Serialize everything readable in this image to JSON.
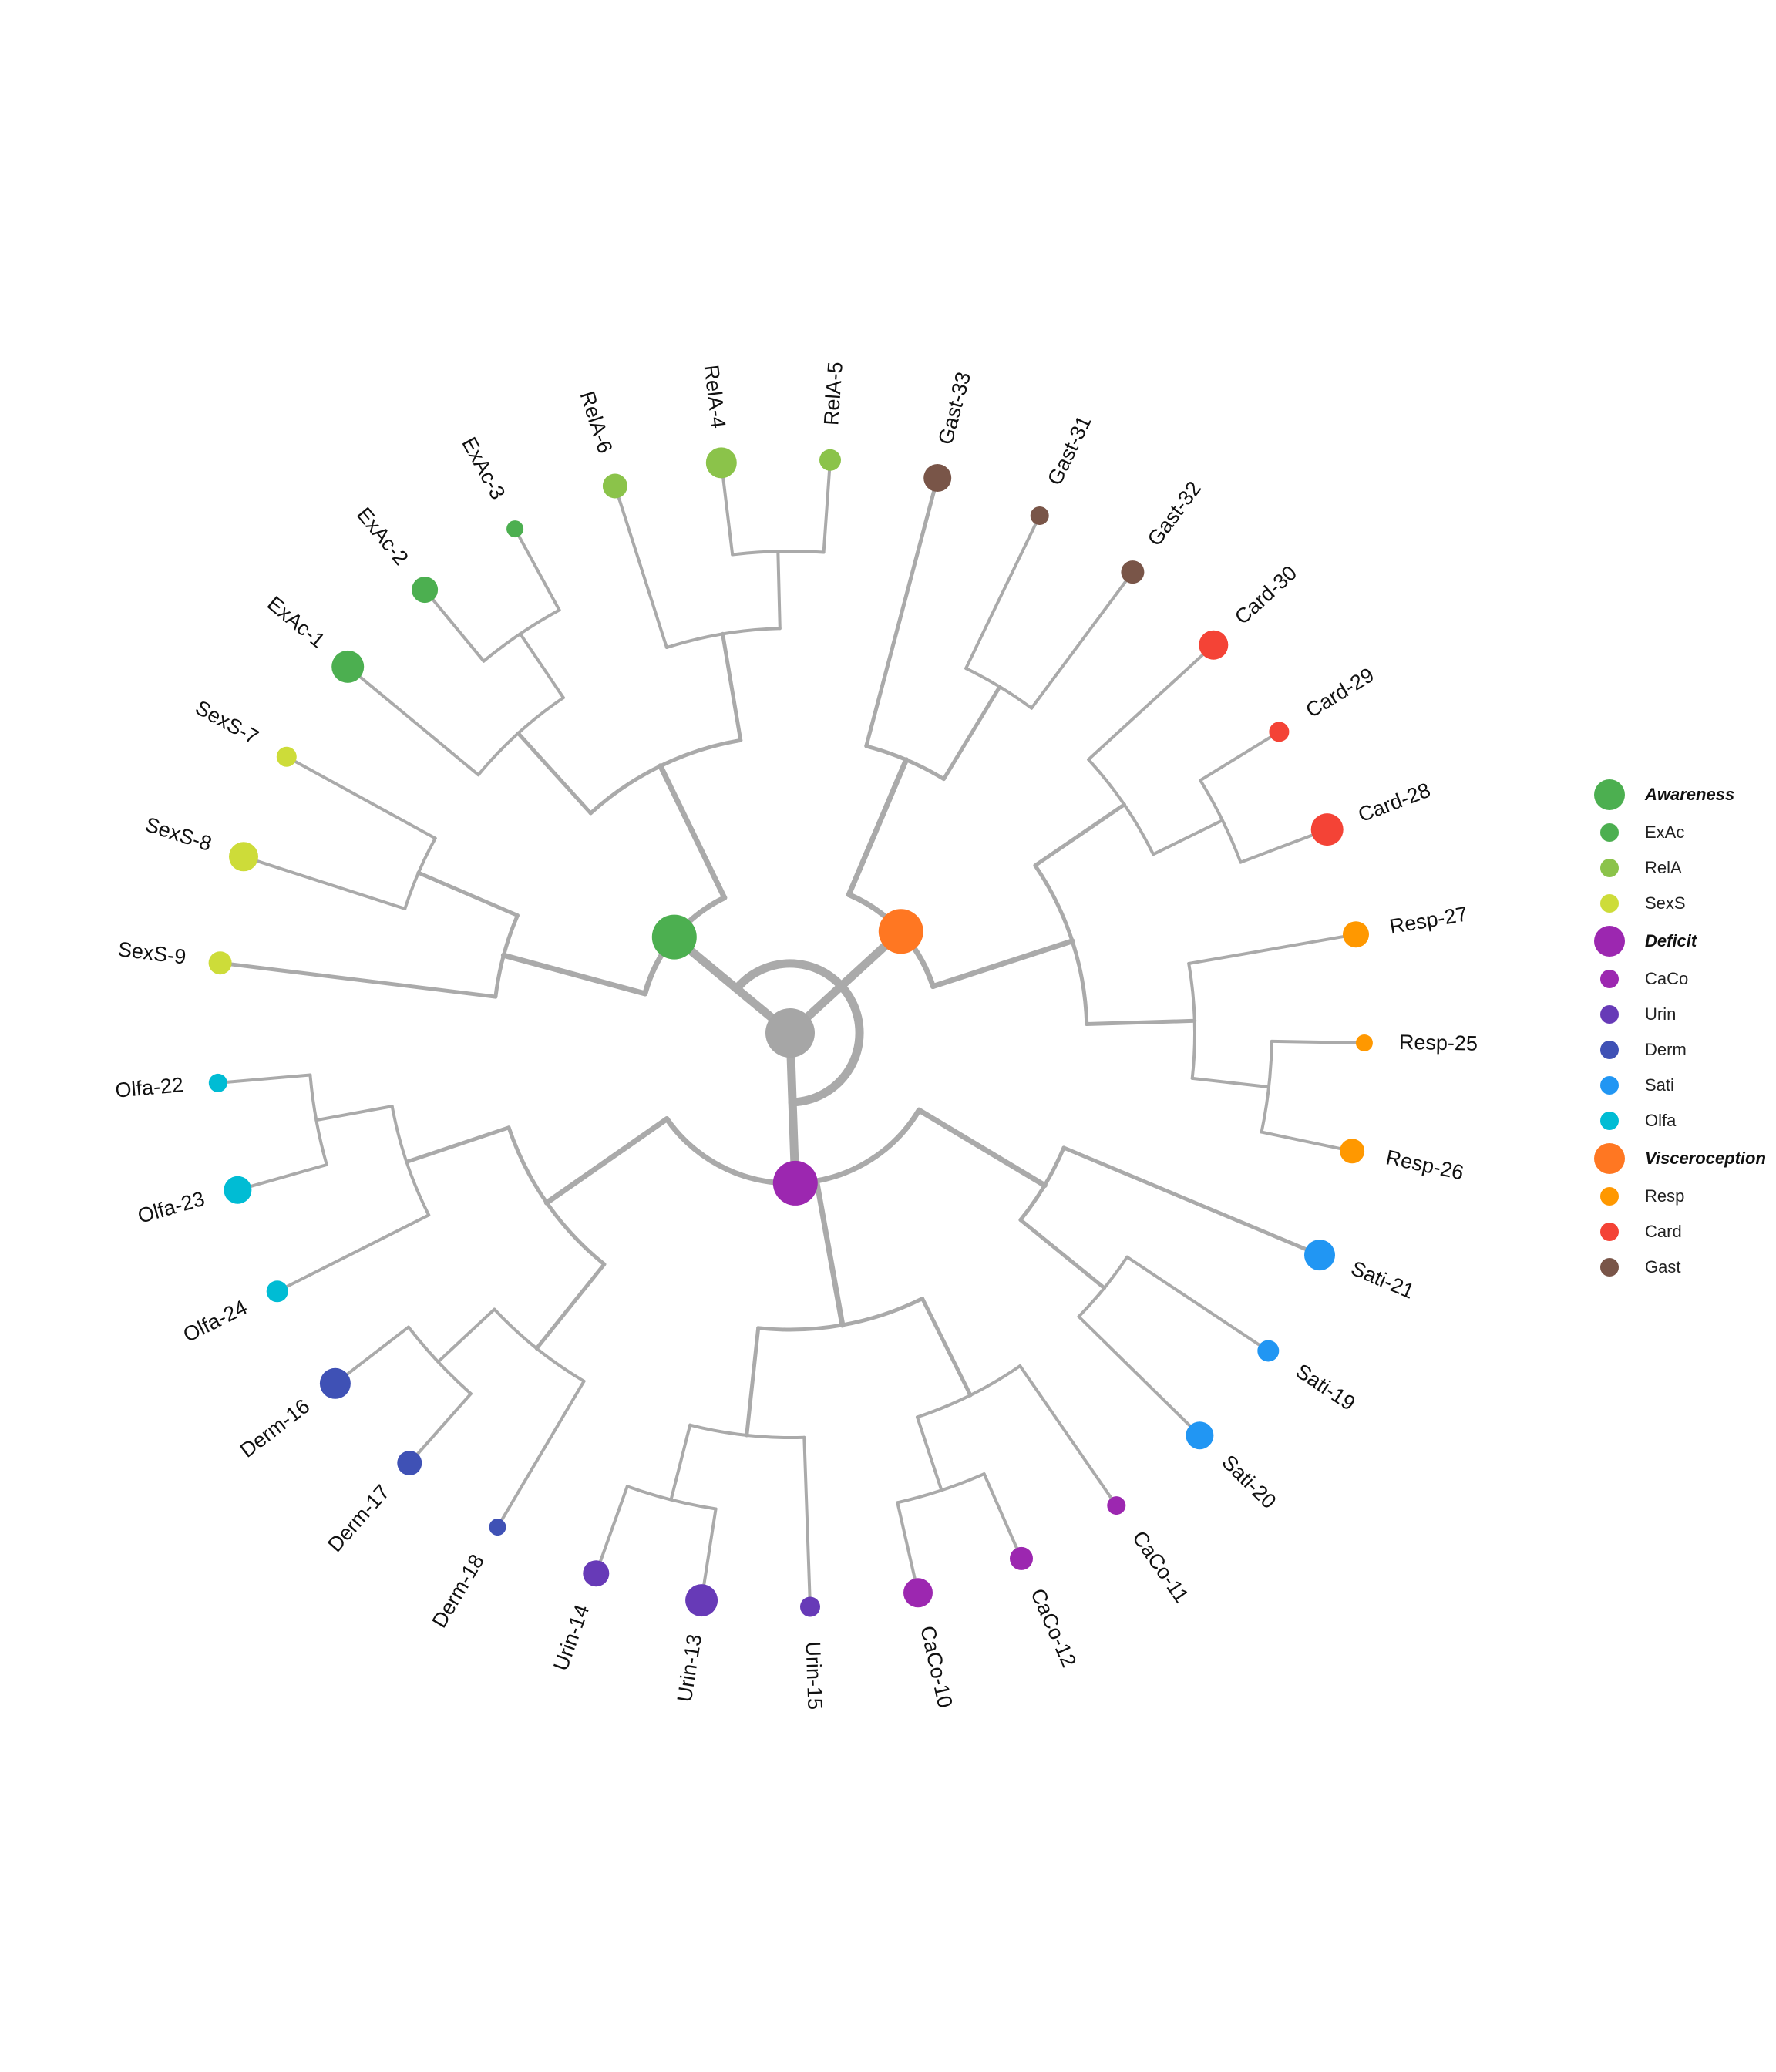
{
  "colors": {
    "branch": "#aaaaaa",
    "root": "#a6a6a6",
    "Awareness": "#4caf50",
    "Deficit": "#9c27b0",
    "Visceroception": "#ff7722",
    "ExAc": "#4caf50",
    "RelA": "#8bc34a",
    "SexS": "#cddc39",
    "CaCo": "#9c27b0",
    "Urin": "#673ab7",
    "Derm": "#3f51b5",
    "Sati": "#2196f3",
    "Olfa": "#00bcd4",
    "Resp": "#ff9800",
    "Card": "#f44336",
    "Gast": "#795548"
  },
  "legend": [
    {
      "label": "Awareness",
      "group": true,
      "color_key": "Awareness"
    },
    {
      "label": "ExAc",
      "group": false,
      "color_key": "ExAc"
    },
    {
      "label": "RelA",
      "group": false,
      "color_key": "RelA"
    },
    {
      "label": "SexS",
      "group": false,
      "color_key": "SexS"
    },
    {
      "label": "Deficit",
      "group": true,
      "color_key": "Deficit"
    },
    {
      "label": "CaCo",
      "group": false,
      "color_key": "CaCo"
    },
    {
      "label": "Urin",
      "group": false,
      "color_key": "Urin"
    },
    {
      "label": "Derm",
      "group": false,
      "color_key": "Derm"
    },
    {
      "label": "Sati",
      "group": false,
      "color_key": "Sati"
    },
    {
      "label": "Olfa",
      "group": false,
      "color_key": "Olfa"
    },
    {
      "label": "Visceroception",
      "group": true,
      "color_key": "Visceroception"
    },
    {
      "label": "Resp",
      "group": false,
      "color_key": "Resp"
    },
    {
      "label": "Card",
      "group": false,
      "color_key": "Card"
    },
    {
      "label": "Gast",
      "group": false,
      "color_key": "Gast"
    }
  ],
  "tree": {
    "name": "root",
    "children": [
      {
        "name": "Awareness",
        "children": [
          {
            "children": [
              {
                "leaf": "SexS-9"
              },
              {
                "children": [
                  {
                    "leaf": "SexS-8"
                  },
                  {
                    "leaf": "SexS-7"
                  }
                ]
              }
            ]
          },
          {
            "children": [
              {
                "children": [
                  {
                    "leaf": "ExAc-1"
                  },
                  {
                    "children": [
                      {
                        "leaf": "ExAc-2"
                      },
                      {
                        "leaf": "ExAc-3"
                      }
                    ]
                  }
                ]
              },
              {
                "children": [
                  {
                    "leaf": "RelA-6"
                  },
                  {
                    "children": [
                      {
                        "leaf": "RelA-4"
                      },
                      {
                        "leaf": "RelA-5"
                      }
                    ]
                  }
                ]
              }
            ]
          }
        ]
      },
      {
        "name": "Visceroception",
        "children": [
          {
            "children": [
              {
                "leaf": "Gast-33"
              },
              {
                "children": [
                  {
                    "leaf": "Gast-31"
                  },
                  {
                    "leaf": "Gast-32"
                  }
                ]
              }
            ]
          },
          {
            "children": [
              {
                "children": [
                  {
                    "leaf": "Card-30"
                  },
                  {
                    "children": [
                      {
                        "leaf": "Card-29"
                      },
                      {
                        "leaf": "Card-28"
                      }
                    ]
                  }
                ]
              },
              {
                "children": [
                  {
                    "leaf": "Resp-27"
                  },
                  {
                    "children": [
                      {
                        "leaf": "Resp-25"
                      },
                      {
                        "leaf": "Resp-26"
                      }
                    ]
                  }
                ]
              }
            ]
          }
        ]
      },
      {
        "name": "Deficit",
        "children": [
          {
            "children": [
              {
                "leaf": "Sati-21"
              },
              {
                "children": [
                  {
                    "leaf": "Sati-19"
                  },
                  {
                    "leaf": "Sati-20"
                  }
                ]
              }
            ]
          },
          {
            "children": [
              {
                "children": [
                  {
                    "leaf": "CaCo-11"
                  },
                  {
                    "children": [
                      {
                        "leaf": "CaCo-12"
                      },
                      {
                        "leaf": "CaCo-10"
                      }
                    ]
                  }
                ]
              },
              {
                "children": [
                  {
                    "leaf": "Urin-15"
                  },
                  {
                    "children": [
                      {
                        "leaf": "Urin-13"
                      },
                      {
                        "leaf": "Urin-14"
                      }
                    ]
                  }
                ]
              }
            ]
          },
          {
            "children": [
              {
                "children": [
                  {
                    "leaf": "Derm-18"
                  },
                  {
                    "children": [
                      {
                        "leaf": "Derm-17"
                      },
                      {
                        "leaf": "Derm-16"
                      }
                    ]
                  }
                ]
              },
              {
                "children": [
                  {
                    "leaf": "Olfa-24"
                  },
                  {
                    "children": [
                      {
                        "leaf": "Olfa-23"
                      },
                      {
                        "leaf": "Olfa-22"
                      }
                    ]
                  }
                ]
              }
            ]
          }
        ]
      }
    ]
  }
}
